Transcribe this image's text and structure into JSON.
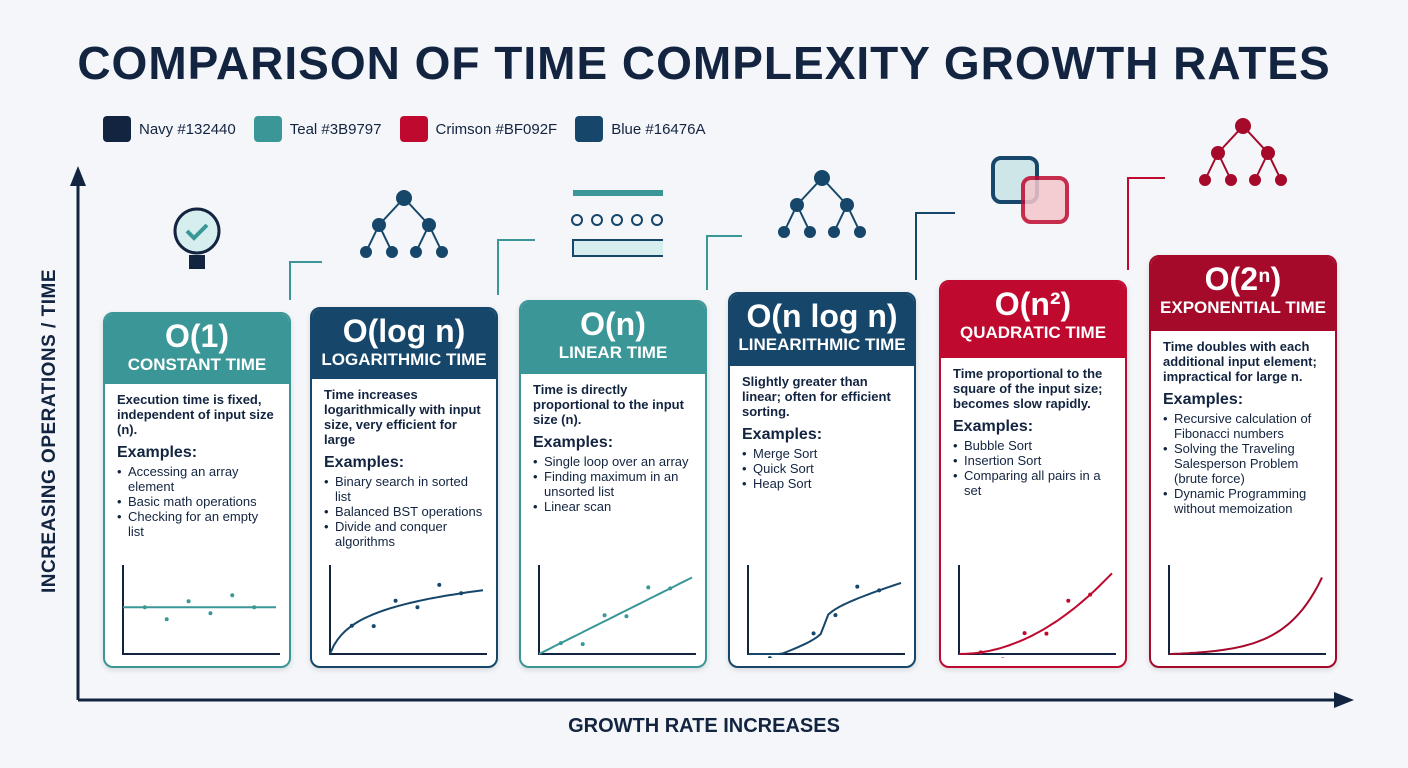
{
  "title": "COMPARISON OF TIME COMPLEXITY GROWTH RATES",
  "legend": [
    {
      "label": "Navy #132440",
      "color": "#132440"
    },
    {
      "label": "Teal #3B9797",
      "color": "#3B9797"
    },
    {
      "label": "Crimson #BF092F",
      "color": "#BF092F"
    },
    {
      "label": "Blue #16476A",
      "color": "#16476A"
    }
  ],
  "y_axis_label": "INCREASING OPERATIONS / TIME",
  "x_axis_label": "GROWTH RATE INCREASES",
  "cards": [
    {
      "notation": "O(1)",
      "name": "CONSTANT TIME",
      "color": "#3B9797",
      "icon": "lightbulb-check-icon",
      "curve": "constant",
      "desc": "Execution time is fixed, independent of input size (n).",
      "examples_label": "Examples:",
      "examples": [
        "Accessing an array element",
        "Basic math operations",
        "Checking for an empty list"
      ]
    },
    {
      "notation": "O(log n)",
      "name": "LOGARITHMIC TIME",
      "color": "#16476A",
      "icon": "binary-tree-icon",
      "curve": "log",
      "desc": "Time increases logarithmically with input size, very efficient for large",
      "examples_label": "Examples:",
      "examples": [
        "Binary search in sorted list",
        "Balanced BST operations",
        "Divide and conquer algorithms"
      ]
    },
    {
      "notation": "O(n)",
      "name": "LINEAR TIME",
      "color": "#3B9797",
      "icon": "linear-scan-icon",
      "curve": "linear",
      "desc": "Time is directly proportional to the input size (n).",
      "examples_label": "Examples:",
      "examples": [
        "Single loop over an array",
        "Finding maximum in an unsorted list",
        "Linear scan"
      ]
    },
    {
      "notation": "O(n log n)",
      "name": "LINEARITHMIC TIME",
      "color": "#16476A",
      "icon": "gear-tree-icon",
      "curve": "nlogn",
      "desc": "Slightly greater than linear; often for efficient sorting.",
      "examples_label": "Examples:",
      "examples": [
        "Merge Sort",
        "Quick Sort",
        "Heap Sort"
      ]
    },
    {
      "notation": "O(n²)",
      "name": "QUADRATIC TIME",
      "color": "#BF092F",
      "icon": "nested-squares-icon",
      "curve": "quadratic",
      "desc": "Time proportional to the square of the input size; becomes slow rapidly.",
      "examples_label": "Examples:",
      "examples": [
        "Bubble Sort",
        "Insertion Sort",
        "Comparing all pairs in a set"
      ]
    },
    {
      "notation": "O(2ⁿ)",
      "name": "EXPONENTIAL TIME",
      "color": "#A50A2A",
      "icon": "cloud-tree-stopwatch-icon",
      "curve": "exponential",
      "desc": "Time doubles with each additional input element; impractical for large n.",
      "examples_label": "Examples:",
      "examples": [
        "Recursive calculation of Fibonacci numbers",
        "Solving the Traveling Salesperson Problem (brute force)",
        "Dynamic Programming without memoization"
      ]
    }
  ]
}
